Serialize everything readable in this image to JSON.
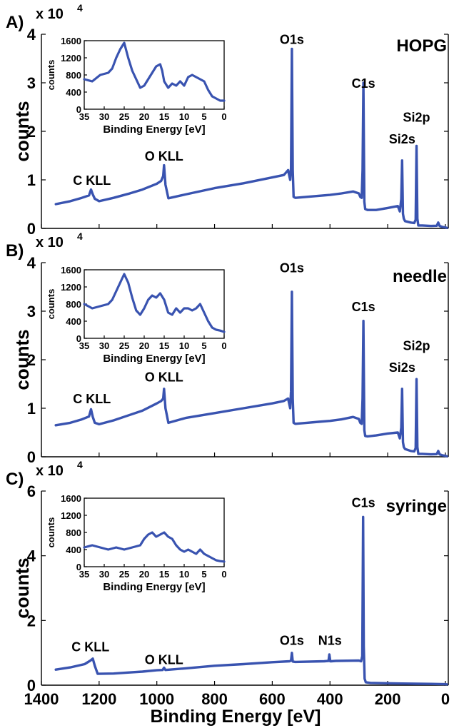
{
  "figure": {
    "xlabel": "Binding Energy [eV]"
  },
  "chart_data": [
    {
      "type": "line",
      "panel_label": "A)",
      "sample_label": "HOPG",
      "xlabel": "",
      "ylabel": "counts",
      "exponent_label": "x 10",
      "exponent_power": "4",
      "x_reversed": true,
      "xlim": [
        1400,
        -10
      ],
      "ylim": [
        0,
        40000
      ],
      "xticks": [],
      "xtick_labels": [],
      "yticks": [
        0,
        10000,
        20000,
        30000,
        40000
      ],
      "ytick_labels": [
        "0",
        "1",
        "2",
        "3",
        "4"
      ],
      "peak_labels": [
        {
          "text": "C KLL",
          "x": 1225,
          "y": 9000
        },
        {
          "text": "O KLL",
          "x": 975,
          "y": 14000
        },
        {
          "text": "O1s",
          "x": 532,
          "y": 38000
        },
        {
          "text": "C1s",
          "x": 284,
          "y": 29000
        },
        {
          "text": "Si2s",
          "x": 150,
          "y": 17500
        },
        {
          "text": "Si2p",
          "x": 100,
          "y": 22000
        }
      ],
      "spectrum": {
        "x": [
          1350,
          1300,
          1260,
          1235,
          1228,
          1222,
          1215,
          1200,
          1150,
          1100,
          1050,
          1000,
          985,
          978,
          975,
          970,
          960,
          900,
          800,
          700,
          600,
          560,
          545,
          538,
          535,
          532,
          529,
          526,
          520,
          480,
          440,
          400,
          360,
          320,
          300,
          295,
          290,
          287,
          284,
          281,
          278,
          270,
          240,
          200,
          165,
          158,
          153,
          150,
          147,
          144,
          140,
          120,
          108,
          103,
          100,
          97,
          94,
          80,
          50,
          30,
          25,
          20,
          10,
          0,
          -5
        ],
        "y": [
          5000,
          5600,
          6300,
          6800,
          8000,
          7000,
          6100,
          5600,
          6300,
          7100,
          8000,
          9200,
          9800,
          10800,
          13000,
          9000,
          6200,
          7000,
          8300,
          9300,
          10500,
          11000,
          12000,
          10000,
          12500,
          37000,
          12000,
          6500,
          6300,
          6500,
          6700,
          6900,
          7200,
          7600,
          7200,
          6500,
          6300,
          12000,
          30000,
          5500,
          4000,
          3800,
          3800,
          4200,
          4600,
          3500,
          6000,
          14000,
          3000,
          2000,
          1500,
          1200,
          1100,
          1800,
          17000,
          2000,
          600,
          600,
          500,
          550,
          1200,
          500,
          300,
          200,
          100
        ]
      },
      "inset": {
        "xlabel": "Binding Energy [eV]",
        "ylabel": "counts",
        "xlim": [
          35,
          0
        ],
        "ylim": [
          0,
          1600
        ],
        "xticks": [
          35,
          30,
          25,
          20,
          15,
          10,
          5,
          0
        ],
        "xtick_labels": [
          "35",
          "30",
          "25",
          "20",
          "15",
          "10",
          "5",
          "0"
        ],
        "yticks": [
          0,
          400,
          800,
          1200,
          1600
        ],
        "ytick_labels": [
          "0",
          "400",
          "800",
          "1200",
          "1600"
        ],
        "x": [
          35,
          33,
          31,
          29,
          28,
          27,
          26,
          25,
          24,
          23,
          22,
          21,
          20,
          19,
          18,
          17,
          16,
          15.5,
          15,
          14,
          13,
          12,
          11,
          10,
          9,
          8,
          7,
          6,
          5,
          4,
          3,
          2,
          1,
          0
        ],
        "y": [
          700,
          650,
          800,
          850,
          950,
          1200,
          1400,
          1550,
          1200,
          900,
          700,
          500,
          550,
          700,
          850,
          1000,
          1050,
          900,
          650,
          500,
          600,
          550,
          650,
          550,
          750,
          800,
          750,
          700,
          650,
          450,
          300,
          250,
          200,
          200
        ]
      }
    },
    {
      "type": "line",
      "panel_label": "B)",
      "sample_label": "needle",
      "xlabel": "",
      "ylabel": "counts",
      "exponent_label": "x 10",
      "exponent_power": "4",
      "x_reversed": true,
      "xlim": [
        1400,
        -10
      ],
      "ylim": [
        0,
        40000
      ],
      "xticks": [],
      "xtick_labels": [],
      "yticks": [
        0,
        10000,
        20000,
        30000,
        40000
      ],
      "ytick_labels": [
        "0",
        "1",
        "2",
        "3",
        "4"
      ],
      "peak_labels": [
        {
          "text": "C KLL",
          "x": 1225,
          "y": 11000
        },
        {
          "text": "O KLL",
          "x": 975,
          "y": 15500
        },
        {
          "text": "O1s",
          "x": 532,
          "y": 38000
        },
        {
          "text": "C1s",
          "x": 284,
          "y": 30000
        },
        {
          "text": "Si2s",
          "x": 150,
          "y": 17500
        },
        {
          "text": "Si2p",
          "x": 100,
          "y": 22000
        }
      ],
      "spectrum": {
        "x": [
          1350,
          1300,
          1260,
          1235,
          1228,
          1222,
          1215,
          1200,
          1150,
          1100,
          1050,
          1000,
          985,
          978,
          975,
          970,
          960,
          900,
          800,
          700,
          600,
          560,
          545,
          538,
          535,
          532,
          529,
          526,
          520,
          480,
          440,
          400,
          360,
          320,
          300,
          295,
          290,
          287,
          284,
          281,
          278,
          270,
          240,
          200,
          165,
          158,
          153,
          150,
          147,
          144,
          140,
          120,
          108,
          103,
          100,
          97,
          94,
          80,
          50,
          30,
          25,
          20,
          10,
          0,
          -5
        ],
        "y": [
          6500,
          7000,
          7700,
          8300,
          9800,
          8200,
          7000,
          6700,
          7500,
          8500,
          9500,
          11000,
          11500,
          12000,
          14000,
          10000,
          7000,
          8000,
          9000,
          10000,
          11000,
          11500,
          12000,
          10000,
          13500,
          34000,
          12000,
          7000,
          6800,
          7000,
          7200,
          7400,
          7700,
          8200,
          7800,
          7000,
          6800,
          12000,
          28000,
          5500,
          4300,
          4200,
          4400,
          4800,
          5000,
          3800,
          6000,
          14000,
          3000,
          2000,
          1600,
          1200,
          1100,
          1800,
          16000,
          2000,
          600,
          600,
          500,
          550,
          1200,
          500,
          300,
          200,
          100
        ]
      },
      "inset": {
        "xlabel": "Binding Energy [eV]",
        "ylabel": "counts",
        "xlim": [
          35,
          0
        ],
        "ylim": [
          0,
          1600
        ],
        "xticks": [
          35,
          30,
          25,
          20,
          15,
          10,
          5,
          0
        ],
        "xtick_labels": [
          "35",
          "30",
          "25",
          "20",
          "15",
          "10",
          "5",
          "0"
        ],
        "yticks": [
          0,
          400,
          800,
          1200,
          1600
        ],
        "ytick_labels": [
          "0",
          "400",
          "800",
          "1200",
          "1600"
        ],
        "x": [
          35,
          33,
          31,
          29,
          28,
          27,
          26,
          25,
          24,
          23,
          22,
          21,
          20,
          19,
          18,
          17,
          16,
          15,
          14,
          13,
          12,
          11,
          10,
          9,
          8,
          7,
          6,
          5,
          4,
          3,
          2,
          1,
          0
        ],
        "y": [
          800,
          700,
          750,
          800,
          900,
          1100,
          1300,
          1500,
          1300,
          950,
          650,
          550,
          700,
          900,
          1000,
          950,
          1050,
          900,
          600,
          550,
          700,
          600,
          700,
          700,
          650,
          700,
          800,
          600,
          400,
          250,
          200,
          180,
          150
        ]
      }
    },
    {
      "type": "line",
      "panel_label": "C)",
      "sample_label": "syringe",
      "xlabel": "Binding Energy [eV]",
      "ylabel": "counts",
      "exponent_label": "x 10",
      "exponent_power": "4",
      "x_reversed": true,
      "xlim": [
        1400,
        -10
      ],
      "ylim": [
        0,
        60000
      ],
      "xticks": [
        1400,
        1200,
        1000,
        800,
        600,
        400,
        200,
        0
      ],
      "xtick_labels": [
        "1400",
        "1200",
        "1000",
        "800",
        "600",
        "400",
        "200",
        "0"
      ],
      "yticks": [
        0,
        20000,
        40000,
        60000
      ],
      "ytick_labels": [
        "0",
        "2",
        "4",
        "6"
      ],
      "peak_labels": [
        {
          "text": "C KLL",
          "x": 1230,
          "y": 10500
        },
        {
          "text": "O KLL",
          "x": 975,
          "y": 6500
        },
        {
          "text": "O1s",
          "x": 532,
          "y": 12500
        },
        {
          "text": "N1s",
          "x": 400,
          "y": 12500
        },
        {
          "text": "C1s",
          "x": 284,
          "y": 55000
        }
      ],
      "spectrum": {
        "x": [
          1350,
          1300,
          1250,
          1230,
          1222,
          1215,
          1205,
          1150,
          1100,
          1050,
          1000,
          980,
          975,
          970,
          900,
          800,
          700,
          600,
          540,
          535,
          532,
          529,
          520,
          420,
          405,
          402,
          399,
          396,
          380,
          300,
          292,
          288,
          285,
          283,
          280,
          276,
          260,
          200,
          150,
          100,
          50,
          20,
          0,
          -5
        ],
        "y": [
          4800,
          5500,
          6500,
          7600,
          8200,
          6000,
          3500,
          3600,
          3900,
          4200,
          4600,
          4700,
          5400,
          4700,
          5200,
          6000,
          6500,
          7100,
          7400,
          7600,
          10000,
          7300,
          7200,
          7400,
          7500,
          9500,
          7400,
          7400,
          7500,
          7600,
          7400,
          9000,
          52000,
          12000,
          2000,
          900,
          700,
          600,
          500,
          450,
          400,
          350,
          300,
          250
        ]
      },
      "inset": {
        "xlabel": "Binding Energy [eV]",
        "ylabel": "counts",
        "xlim": [
          35,
          0
        ],
        "ylim": [
          0,
          1600
        ],
        "xticks": [
          35,
          30,
          25,
          20,
          15,
          10,
          5,
          0
        ],
        "xtick_labels": [
          "35",
          "30",
          "25",
          "20",
          "15",
          "10",
          "5",
          "0"
        ],
        "yticks": [
          0,
          400,
          800,
          1200,
          1600
        ],
        "ytick_labels": [
          "0",
          "400",
          "800",
          "1200",
          "1600"
        ],
        "x": [
          35,
          33,
          31,
          29,
          27,
          25,
          23,
          21,
          20,
          19,
          18,
          17,
          16,
          15,
          14,
          13,
          12,
          11,
          10,
          9,
          8,
          7,
          6,
          5,
          4,
          3,
          2,
          1,
          0
        ],
        "y": [
          450,
          500,
          450,
          400,
          450,
          400,
          450,
          500,
          650,
          750,
          800,
          700,
          750,
          800,
          700,
          650,
          500,
          400,
          350,
          400,
          350,
          300,
          400,
          300,
          250,
          200,
          150,
          130,
          120
        ]
      }
    }
  ]
}
